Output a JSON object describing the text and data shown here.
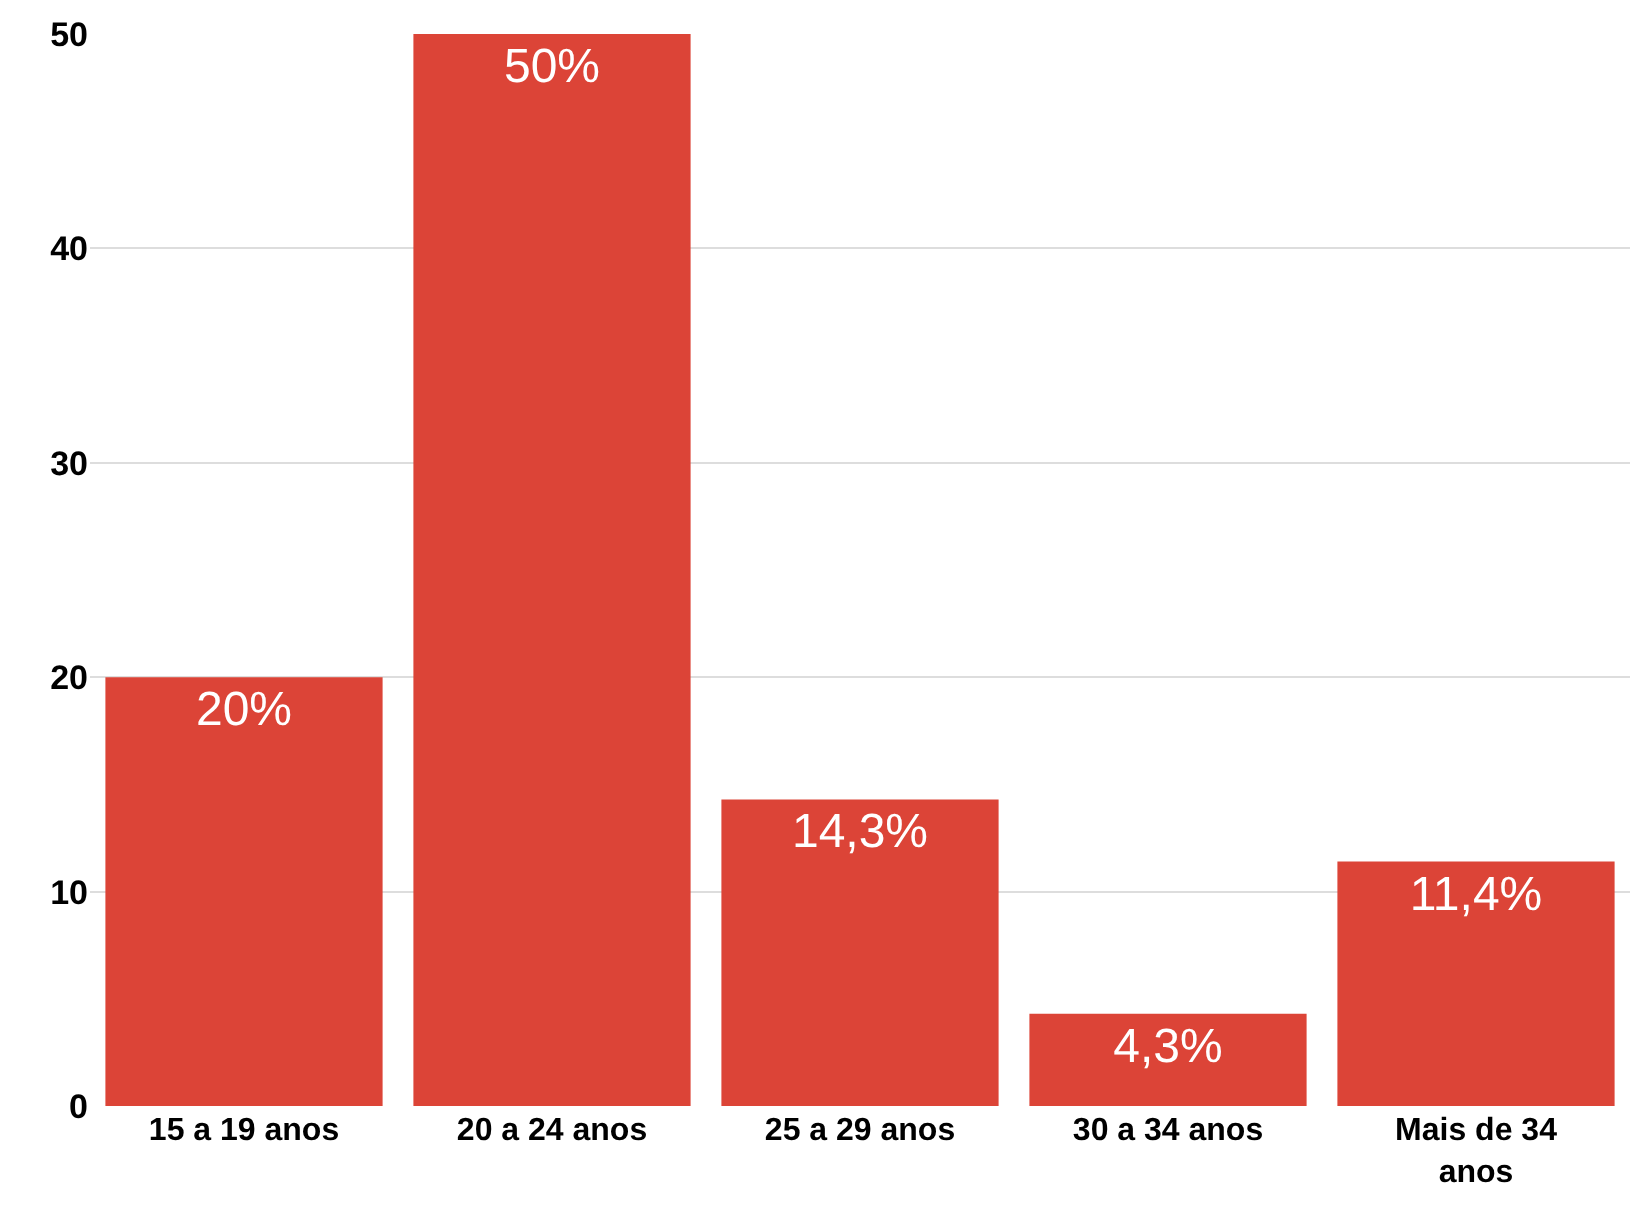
{
  "chart_data": {
    "type": "bar",
    "categories": [
      "15 a 19 anos",
      "20 a 24 anos",
      "25 a 29 anos",
      "30 a 34 anos",
      "Mais de 34 anos"
    ],
    "values": [
      20,
      50,
      14.3,
      4.3,
      11.4
    ],
    "value_labels": [
      "20%",
      "50%",
      "14,3%",
      "4,3%",
      "11,4%"
    ],
    "color": "#dc4437",
    "ylim": [
      0,
      50
    ],
    "yticks": [
      0,
      10,
      20,
      30,
      40,
      50
    ],
    "grid": "y"
  }
}
